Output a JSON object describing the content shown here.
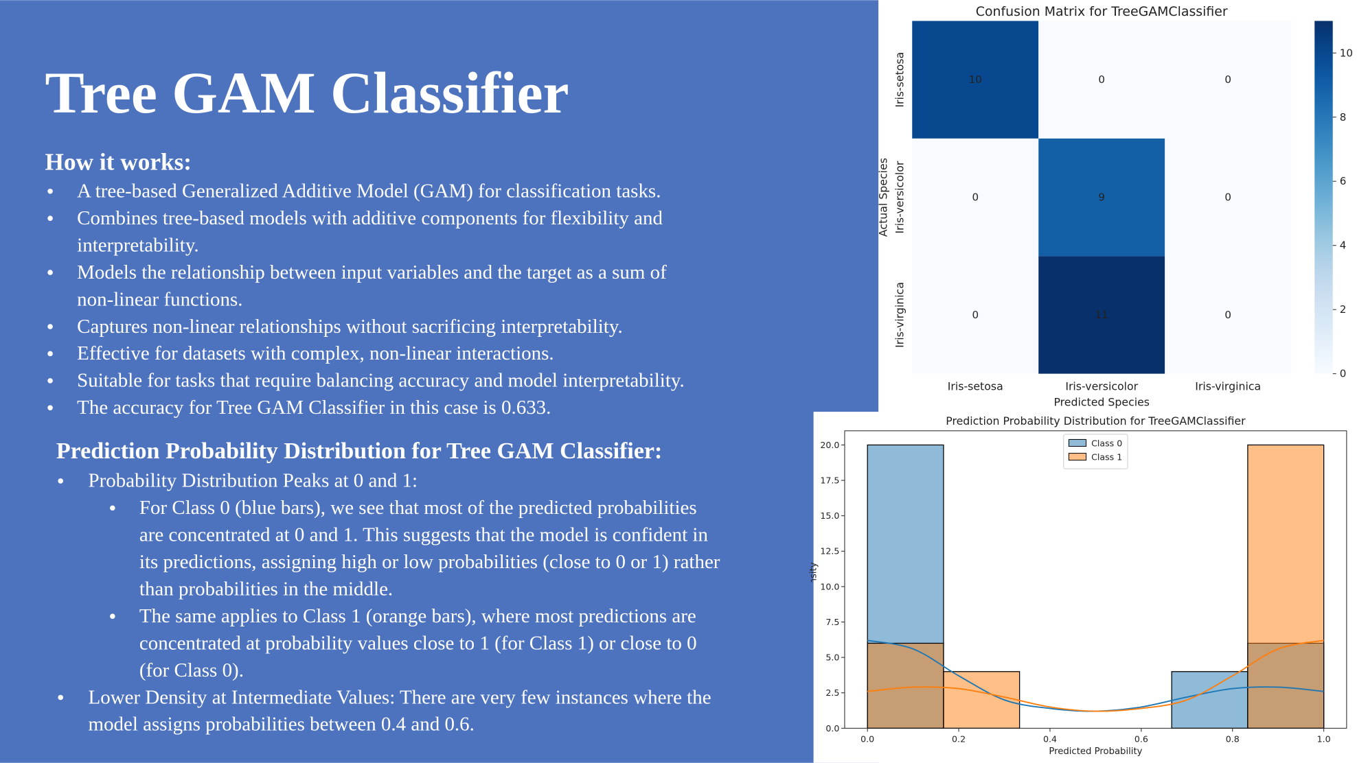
{
  "slide": {
    "title": "Tree GAM Classifier",
    "sections": [
      {
        "heading": "How it works:",
        "bullets": [
          {
            "lines": [
              "A tree-based Generalized Additive Model (GAM) for classification tasks."
            ]
          },
          {
            "lines": [
              "Combines tree-based models with additive components for flexibility and",
              "interpretability."
            ]
          },
          {
            "lines": [
              "Models the relationship between input variables and the target as a sum of",
              "non-linear functions."
            ]
          },
          {
            "lines": [
              "Captures non-linear relationships without sacrificing interpretability."
            ]
          },
          {
            "lines": [
              "Effective for datasets with complex, non-linear interactions."
            ]
          },
          {
            "lines": [
              "Suitable for tasks that require balancing accuracy and model interpretability."
            ]
          },
          {
            "lines": [
              "The accuracy for Tree GAM Classifier in this case is 0.633."
            ]
          }
        ]
      },
      {
        "heading": "Prediction Probability Distribution for Tree GAM Classifier:",
        "bullets": [
          {
            "lines": [
              "Probability Distribution Peaks at 0 and 1:"
            ],
            "sub": [
              {
                "lines": [
                  "For Class 0 (blue bars), we see that most of the predicted probabilities",
                  "are concentrated at 0 and 1. This suggests that the model is confident in",
                  "its predictions, assigning high or low probabilities (close to 0 or 1) rather",
                  "than probabilities in the middle."
                ]
              },
              {
                "lines": [
                  "The same applies to Class 1 (orange bars), where most predictions are",
                  "concentrated at probability values close to 1 (for Class 1) or close to 0",
                  "(for Class 0)."
                ]
              }
            ]
          },
          {
            "lines": [
              "Lower Density at Intermediate Values: There are very few instances where the",
              "model assigns probabilities between 0.4 and 0.6."
            ]
          }
        ]
      }
    ]
  },
  "chart_data": [
    {
      "type": "heatmap",
      "title": "Confusion Matrix for TreeGAMClassifier",
      "x_label": "Predicted Species",
      "y_label": "Actual Species",
      "x_categories": [
        "Iris-setosa",
        "Iris-versicolor",
        "Iris-virginica"
      ],
      "y_categories": [
        "Iris-setosa",
        "Iris-versicolor",
        "Iris-virginica"
      ],
      "values": [
        [
          10,
          0,
          0
        ],
        [
          0,
          9,
          0
        ],
        [
          0,
          11,
          0
        ]
      ],
      "colormap": "Blues",
      "clim": [
        0,
        11
      ],
      "cticks": [
        0,
        2,
        4,
        6,
        8,
        10
      ]
    },
    {
      "type": "histogram",
      "title": "Prediction Probability Distribution for TreeGAMClassifier",
      "x_label": "Predicted Probability",
      "y_label": "Density",
      "bins": [
        0,
        0.1667,
        0.3333,
        0.5,
        0.6667,
        0.8333,
        1.0
      ],
      "kde_x": [
        0,
        0.1,
        0.2,
        0.3,
        0.4,
        0.5,
        0.6,
        0.7,
        0.8,
        0.9,
        1.0
      ],
      "series": [
        {
          "name": "Class 0",
          "color": "#1f77b4",
          "values": [
            20,
            0,
            0,
            0,
            4,
            6
          ],
          "kde": [
            6.2,
            5.6,
            3.7,
            2.0,
            1.4,
            1.2,
            1.5,
            2.2,
            2.8,
            2.9,
            2.6
          ]
        },
        {
          "name": "Class 1",
          "color": "#ff7f0e",
          "values": [
            6,
            4,
            0,
            0,
            0,
            20
          ],
          "kde": [
            2.6,
            2.9,
            2.8,
            2.2,
            1.5,
            1.2,
            1.4,
            2.0,
            3.7,
            5.6,
            6.2
          ]
        }
      ],
      "xlim": [
        -0.05,
        1.05
      ],
      "ylim": [
        0,
        21
      ],
      "xticks": [
        {
          "value": 0,
          "label": "0.0"
        },
        {
          "value": 0.2,
          "label": "0.2"
        },
        {
          "value": 0.4,
          "label": "0.4"
        },
        {
          "value": 0.6,
          "label": "0.6"
        },
        {
          "value": 0.8,
          "label": "0.8"
        },
        {
          "value": 1,
          "label": "1.0"
        }
      ],
      "yticks": [
        {
          "value": 0,
          "label": "0.0"
        },
        {
          "value": 2.5,
          "label": "2.5"
        },
        {
          "value": 5,
          "label": "5.0"
        },
        {
          "value": 7.5,
          "label": "7.5"
        },
        {
          "value": 10,
          "label": "10.0"
        },
        {
          "value": 12.5,
          "label": "12.5"
        },
        {
          "value": 15,
          "label": "15.0"
        },
        {
          "value": 17.5,
          "label": "17.5"
        },
        {
          "value": 20,
          "label": "20.0"
        }
      ],
      "legend": "upper center",
      "bar_alpha": 0.5
    }
  ]
}
